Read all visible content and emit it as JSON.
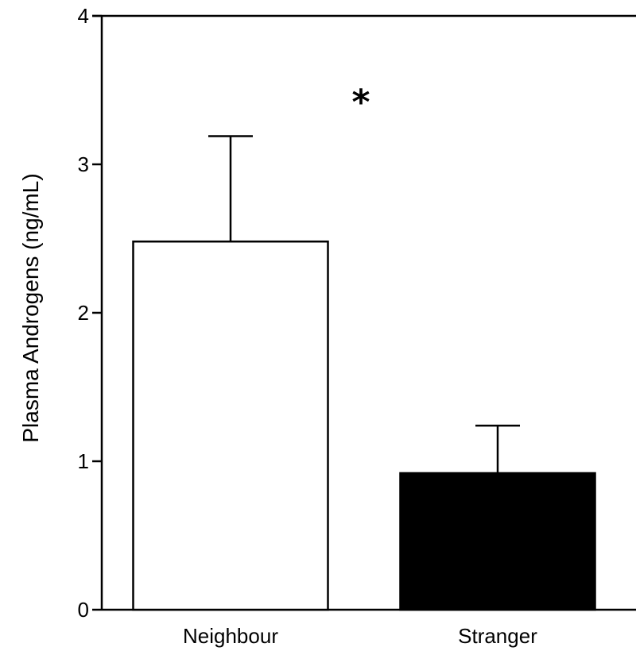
{
  "chart_data": {
    "type": "bar",
    "title": "",
    "xlabel": "",
    "ylabel": "Plasma Androgens (ng/mL)",
    "categories": [
      "Neighbour",
      "Stranger"
    ],
    "values": [
      2.48,
      0.92
    ],
    "errors": [
      0.71,
      0.32
    ],
    "bar_fills": [
      "#ffffff",
      "#000000"
    ],
    "bar_stroke": "#000000",
    "ylim": [
      0,
      4
    ],
    "yticks": [
      "0",
      "1",
      "2",
      "3",
      "4"
    ],
    "grid": false,
    "legend": "none",
    "annotations": [
      {
        "text": "*",
        "x": 1.5,
        "y": 3.5
      }
    ]
  }
}
